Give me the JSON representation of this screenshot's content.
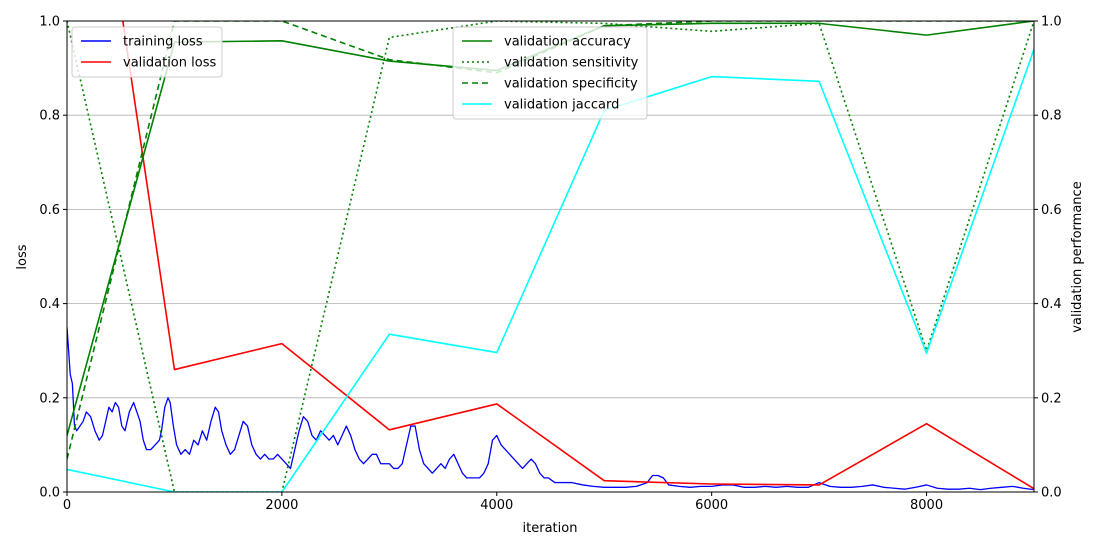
{
  "chart_data": {
    "type": "line",
    "xlabel": "iteration",
    "ylabel_left": "loss",
    "ylabel_right": "validation performance",
    "xlim": [
      0,
      9000
    ],
    "ylim_left": [
      0,
      1.0
    ],
    "ylim_right": [
      0,
      1.0
    ],
    "grid": "horizontal",
    "x_ticks": [
      "0",
      "2000",
      "4000",
      "6000",
      "8000"
    ],
    "x_tick_values": [
      0,
      2000,
      4000,
      6000,
      8000
    ],
    "y_ticks_left": [
      "0.0",
      "0.2",
      "0.4",
      "0.6",
      "0.8",
      "1.0"
    ],
    "y_ticks_right": [
      "0.0",
      "0.2",
      "0.4",
      "0.6",
      "0.8",
      "1.0"
    ],
    "y_tick_values": [
      0,
      0.2,
      0.4,
      0.6,
      0.8,
      1.0
    ],
    "legend_left": {
      "placement": "top-left",
      "entries": [
        {
          "label": "training loss",
          "color": "#0000ff",
          "dash": "solid"
        },
        {
          "label": "validation loss",
          "color": "#ff0000",
          "dash": "solid"
        }
      ]
    },
    "legend_right": {
      "placement": "top-center",
      "entries": [
        {
          "label": "validation accuracy",
          "color": "#008000",
          "dash": "solid"
        },
        {
          "label": "validation sensitivity",
          "color": "#008000",
          "dash": "dotted"
        },
        {
          "label": "validation specificity",
          "color": "#008000",
          "dash": "dashed"
        },
        {
          "label": "validation jaccard",
          "color": "#00ffff",
          "dash": "solid"
        }
      ]
    },
    "series": [
      {
        "name": "training loss",
        "axis": "left",
        "color": "#0000ff",
        "dash": "solid",
        "width": 1.3,
        "points": [
          [
            0,
            0.35
          ],
          [
            30,
            0.25
          ],
          [
            50,
            0.23
          ],
          [
            70,
            0.14
          ],
          [
            90,
            0.13
          ],
          [
            120,
            0.14
          ],
          [
            150,
            0.15
          ],
          [
            180,
            0.17
          ],
          [
            220,
            0.16
          ],
          [
            260,
            0.13
          ],
          [
            300,
            0.11
          ],
          [
            330,
            0.12
          ],
          [
            360,
            0.15
          ],
          [
            390,
            0.18
          ],
          [
            420,
            0.17
          ],
          [
            450,
            0.19
          ],
          [
            480,
            0.18
          ],
          [
            510,
            0.14
          ],
          [
            540,
            0.13
          ],
          [
            580,
            0.17
          ],
          [
            620,
            0.19
          ],
          [
            650,
            0.17
          ],
          [
            680,
            0.15
          ],
          [
            710,
            0.11
          ],
          [
            740,
            0.09
          ],
          [
            780,
            0.09
          ],
          [
            820,
            0.1
          ],
          [
            860,
            0.11
          ],
          [
            880,
            0.13
          ],
          [
            910,
            0.18
          ],
          [
            940,
            0.2
          ],
          [
            960,
            0.19
          ],
          [
            990,
            0.14
          ],
          [
            1020,
            0.1
          ],
          [
            1060,
            0.08
          ],
          [
            1100,
            0.09
          ],
          [
            1140,
            0.08
          ],
          [
            1180,
            0.11
          ],
          [
            1220,
            0.1
          ],
          [
            1260,
            0.13
          ],
          [
            1300,
            0.11
          ],
          [
            1340,
            0.15
          ],
          [
            1380,
            0.18
          ],
          [
            1410,
            0.17
          ],
          [
            1440,
            0.13
          ],
          [
            1480,
            0.1
          ],
          [
            1520,
            0.08
          ],
          [
            1560,
            0.09
          ],
          [
            1600,
            0.12
          ],
          [
            1640,
            0.15
          ],
          [
            1680,
            0.14
          ],
          [
            1720,
            0.1
          ],
          [
            1760,
            0.08
          ],
          [
            1800,
            0.07
          ],
          [
            1840,
            0.08
          ],
          [
            1880,
            0.07
          ],
          [
            1920,
            0.07
          ],
          [
            1960,
            0.08
          ],
          [
            2000,
            0.07
          ],
          [
            2040,
            0.06
          ],
          [
            2080,
            0.05
          ],
          [
            2120,
            0.09
          ],
          [
            2160,
            0.13
          ],
          [
            2200,
            0.16
          ],
          [
            2240,
            0.15
          ],
          [
            2280,
            0.12
          ],
          [
            2320,
            0.11
          ],
          [
            2360,
            0.13
          ],
          [
            2400,
            0.12
          ],
          [
            2440,
            0.11
          ],
          [
            2480,
            0.12
          ],
          [
            2520,
            0.1
          ],
          [
            2560,
            0.12
          ],
          [
            2600,
            0.14
          ],
          [
            2640,
            0.12
          ],
          [
            2680,
            0.09
          ],
          [
            2720,
            0.07
          ],
          [
            2760,
            0.06
          ],
          [
            2800,
            0.07
          ],
          [
            2840,
            0.08
          ],
          [
            2880,
            0.08
          ],
          [
            2920,
            0.06
          ],
          [
            2960,
            0.06
          ],
          [
            3000,
            0.06
          ],
          [
            3040,
            0.05
          ],
          [
            3080,
            0.05
          ],
          [
            3120,
            0.06
          ],
          [
            3160,
            0.1
          ],
          [
            3200,
            0.14
          ],
          [
            3240,
            0.14
          ],
          [
            3280,
            0.09
          ],
          [
            3320,
            0.06
          ],
          [
            3360,
            0.05
          ],
          [
            3400,
            0.04
          ],
          [
            3440,
            0.05
          ],
          [
            3480,
            0.06
          ],
          [
            3520,
            0.05
          ],
          [
            3560,
            0.07
          ],
          [
            3600,
            0.08
          ],
          [
            3640,
            0.06
          ],
          [
            3680,
            0.04
          ],
          [
            3720,
            0.03
          ],
          [
            3760,
            0.03
          ],
          [
            3800,
            0.03
          ],
          [
            3840,
            0.03
          ],
          [
            3880,
            0.04
          ],
          [
            3920,
            0.06
          ],
          [
            3960,
            0.11
          ],
          [
            4000,
            0.12
          ],
          [
            4040,
            0.1
          ],
          [
            4080,
            0.09
          ],
          [
            4120,
            0.08
          ],
          [
            4160,
            0.07
          ],
          [
            4200,
            0.06
          ],
          [
            4240,
            0.05
          ],
          [
            4280,
            0.06
          ],
          [
            4320,
            0.07
          ],
          [
            4360,
            0.06
          ],
          [
            4400,
            0.04
          ],
          [
            4440,
            0.03
          ],
          [
            4480,
            0.03
          ],
          [
            4540,
            0.02
          ],
          [
            4600,
            0.02
          ],
          [
            4700,
            0.02
          ],
          [
            4800,
            0.015
          ],
          [
            4900,
            0.012
          ],
          [
            5000,
            0.01
          ],
          [
            5100,
            0.01
          ],
          [
            5200,
            0.01
          ],
          [
            5300,
            0.012
          ],
          [
            5400,
            0.02
          ],
          [
            5450,
            0.035
          ],
          [
            5500,
            0.035
          ],
          [
            5550,
            0.03
          ],
          [
            5600,
            0.015
          ],
          [
            5700,
            0.012
          ],
          [
            5800,
            0.01
          ],
          [
            5900,
            0.012
          ],
          [
            6000,
            0.012
          ],
          [
            6100,
            0.015
          ],
          [
            6200,
            0.015
          ],
          [
            6300,
            0.01
          ],
          [
            6400,
            0.01
          ],
          [
            6500,
            0.012
          ],
          [
            6600,
            0.01
          ],
          [
            6700,
            0.012
          ],
          [
            6800,
            0.01
          ],
          [
            6900,
            0.01
          ],
          [
            7000,
            0.02
          ],
          [
            7100,
            0.012
          ],
          [
            7200,
            0.01
          ],
          [
            7300,
            0.01
          ],
          [
            7400,
            0.012
          ],
          [
            7500,
            0.015
          ],
          [
            7600,
            0.01
          ],
          [
            7700,
            0.008
          ],
          [
            7800,
            0.006
          ],
          [
            7900,
            0.01
          ],
          [
            8000,
            0.015
          ],
          [
            8100,
            0.008
          ],
          [
            8200,
            0.006
          ],
          [
            8300,
            0.006
          ],
          [
            8400,
            0.008
          ],
          [
            8500,
            0.005
          ],
          [
            8600,
            0.008
          ],
          [
            8700,
            0.01
          ],
          [
            8800,
            0.012
          ],
          [
            8900,
            0.008
          ],
          [
            9000,
            0.005
          ]
        ]
      },
      {
        "name": "validation loss",
        "axis": "left",
        "color": "#ff0000",
        "dash": "solid",
        "width": 1.6,
        "points": [
          [
            0,
            1.8
          ],
          [
            1000,
            0.26
          ],
          [
            2000,
            0.315
          ],
          [
            3000,
            0.132
          ],
          [
            4000,
            0.187
          ],
          [
            5000,
            0.024
          ],
          [
            6000,
            0.017
          ],
          [
            7000,
            0.015
          ],
          [
            8000,
            0.145
          ],
          [
            9000,
            0.007
          ]
        ]
      },
      {
        "name": "validation accuracy",
        "axis": "right",
        "color": "#008000",
        "dash": "solid",
        "width": 1.6,
        "points": [
          [
            0,
            0.12
          ],
          [
            1000,
            0.955
          ],
          [
            2000,
            0.958
          ],
          [
            3000,
            0.915
          ],
          [
            4000,
            0.895
          ],
          [
            5000,
            0.99
          ],
          [
            6000,
            0.995
          ],
          [
            7000,
            0.995
          ],
          [
            8000,
            0.97
          ],
          [
            9000,
            1.0
          ]
        ]
      },
      {
        "name": "validation sensitivity",
        "axis": "right",
        "color": "#008000",
        "dash": "dotted",
        "width": 1.6,
        "points": [
          [
            0,
            1.0
          ],
          [
            1000,
            0.0
          ],
          [
            2000,
            0.0
          ],
          [
            3000,
            0.965
          ],
          [
            4000,
            1.0
          ],
          [
            5000,
            0.995
          ],
          [
            6000,
            0.978
          ],
          [
            7000,
            0.995
          ],
          [
            8000,
            0.3
          ],
          [
            9000,
            1.0
          ]
        ]
      },
      {
        "name": "validation specificity",
        "axis": "right",
        "color": "#008000",
        "dash": "dashed",
        "width": 1.6,
        "points": [
          [
            0,
            0.07
          ],
          [
            1000,
            1.0
          ],
          [
            2000,
            1.0
          ],
          [
            3000,
            0.918
          ],
          [
            4000,
            0.89
          ],
          [
            5000,
            0.99
          ],
          [
            6000,
            1.0
          ],
          [
            7000,
            1.0
          ],
          [
            8000,
            1.0
          ],
          [
            9000,
            1.0
          ]
        ]
      },
      {
        "name": "validation jaccard",
        "axis": "right",
        "color": "#00ffff",
        "dash": "solid",
        "width": 1.6,
        "points": [
          [
            0,
            0.048
          ],
          [
            1000,
            0.0
          ],
          [
            2000,
            0.0
          ],
          [
            3000,
            0.335
          ],
          [
            4000,
            0.296
          ],
          [
            5000,
            0.81
          ],
          [
            6000,
            0.882
          ],
          [
            7000,
            0.872
          ],
          [
            8000,
            0.295
          ],
          [
            9000,
            0.94
          ]
        ]
      }
    ]
  }
}
